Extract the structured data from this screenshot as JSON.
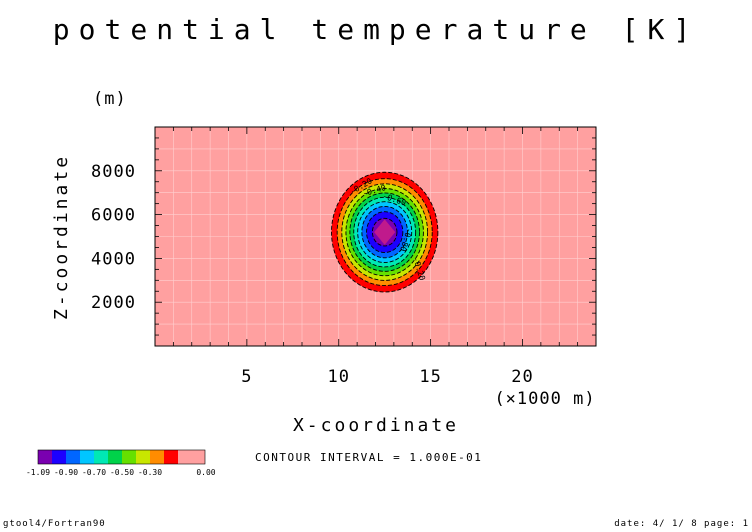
{
  "chart_data": {
    "type": "heatmap",
    "title": "potential temperature [K]",
    "xlabel": "X-coordinate",
    "ylabel": "Z-coordinate",
    "xunit": "(×1000 m)",
    "yunit": "(m)",
    "xlim": [
      0,
      24
    ],
    "ylim": [
      0,
      10000
    ],
    "xticks": [
      5,
      10,
      15,
      20
    ],
    "yticks": [
      2000,
      4000,
      6000,
      8000
    ],
    "field": {
      "shape": "elliptic-cosine-bubble",
      "center_x": 12.5,
      "center_z": 5200,
      "radius_x": 3.6,
      "radius_z": 3400,
      "min": -1.09,
      "max": 0.0
    },
    "contour_levels": [
      -1.1,
      -1.0,
      -0.9,
      -0.8,
      -0.7,
      -0.6,
      -0.5,
      -0.4,
      -0.3,
      -0.2,
      -0.1
    ],
    "contour_labels": [
      "-0.20",
      "-0.40",
      "-0.60",
      "-0.80",
      "-0.20"
    ],
    "contour_interval": "CONTOUR INTERVAL = 1.000E-01",
    "colorbar": {
      "colors": [
        "#7a00b0",
        "#1c00ff",
        "#0066ff",
        "#00c6ff",
        "#00e8b4",
        "#00d24a",
        "#66e000",
        "#c8e600",
        "#ff8c00",
        "#ff0000",
        "#ffa0a0"
      ],
      "tick_labels": [
        "-1.09",
        "-0.90",
        "-0.70",
        "-0.50",
        "-0.30",
        "0.00"
      ]
    }
  },
  "footer": {
    "left": "gtool4/Fortran90",
    "right": "date: 4/ 1/ 8 page: 1"
  }
}
